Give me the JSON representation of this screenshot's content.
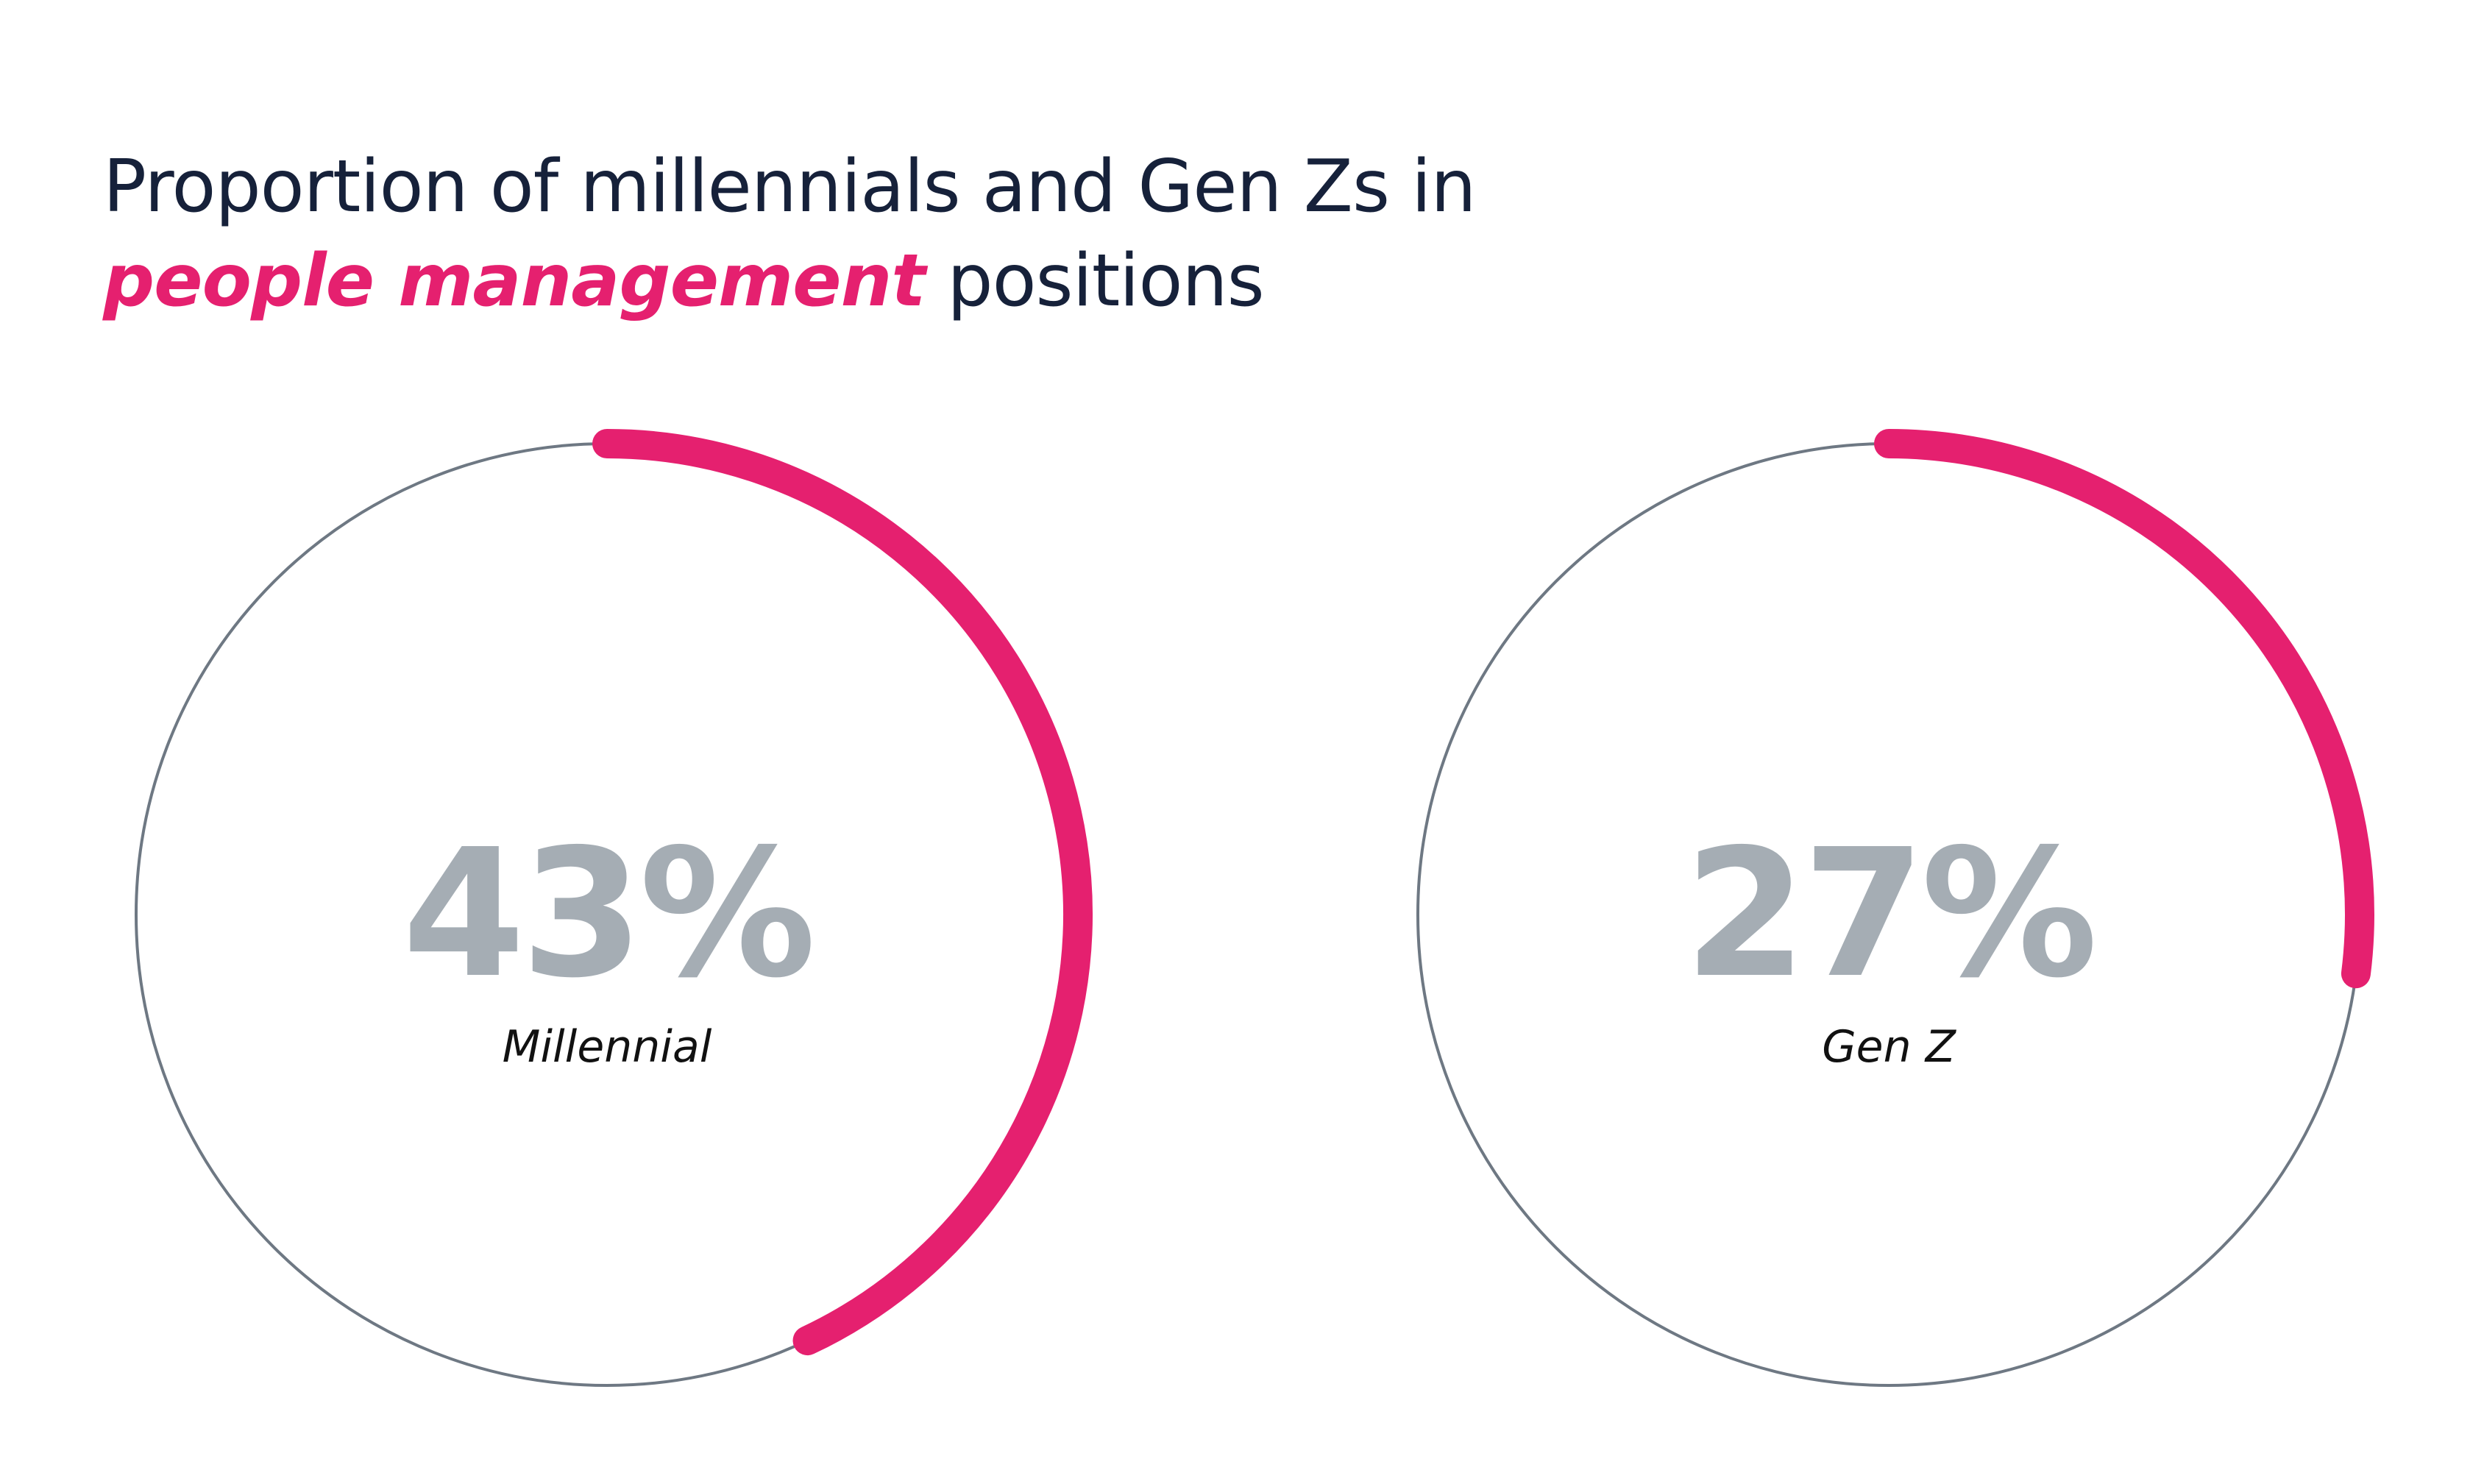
{
  "title": {
    "line1": "Proportion of millennials and Gen Zs in",
    "highlight": "people management",
    "line2_rest": "positions"
  },
  "colors": {
    "accent": "#e5206f",
    "track": "#6e7883",
    "value_text": "#a5adb4",
    "title_text": "#16213a"
  },
  "chart_data": [
    {
      "type": "pie",
      "style": "progress-ring",
      "categories": [
        "Millennial"
      ],
      "values": [
        43
      ],
      "value_label": "43%",
      "unit": "%",
      "ylim": [
        0,
        100
      ]
    },
    {
      "type": "pie",
      "style": "progress-ring",
      "categories": [
        "Gen Z"
      ],
      "values": [
        27
      ],
      "value_label": "27%",
      "unit": "%",
      "ylim": [
        0,
        100
      ]
    }
  ]
}
